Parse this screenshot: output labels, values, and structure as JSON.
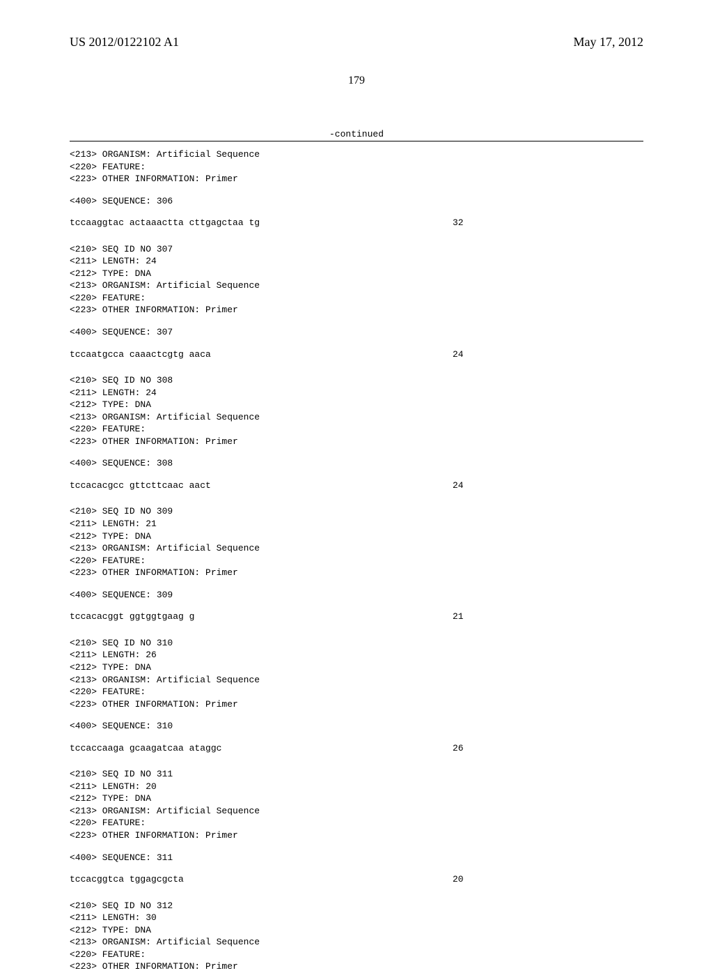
{
  "header": {
    "pub_number": "US 2012/0122102 A1",
    "pub_date": "May 17, 2012"
  },
  "page_number": "179",
  "continued_label": "-continued",
  "entries": [
    {
      "pre_lines": [
        "<213> ORGANISM: Artificial Sequence",
        "<220> FEATURE:",
        "<223> OTHER INFORMATION: Primer"
      ],
      "seq400": "<400> SEQUENCE: 306",
      "sequence": "tccaaggtac actaaactta cttgagctaa tg",
      "length": "32",
      "show_header_block": false
    },
    {
      "header_lines": [
        "<210> SEQ ID NO 307",
        "<211> LENGTH: 24",
        "<212> TYPE: DNA",
        "<213> ORGANISM: Artificial Sequence",
        "<220> FEATURE:",
        "<223> OTHER INFORMATION: Primer"
      ],
      "seq400": "<400> SEQUENCE: 307",
      "sequence": "tccaatgcca caaactcgtg aaca",
      "length": "24",
      "show_header_block": true
    },
    {
      "header_lines": [
        "<210> SEQ ID NO 308",
        "<211> LENGTH: 24",
        "<212> TYPE: DNA",
        "<213> ORGANISM: Artificial Sequence",
        "<220> FEATURE:",
        "<223> OTHER INFORMATION: Primer"
      ],
      "seq400": "<400> SEQUENCE: 308",
      "sequence": "tccacacgcc gttcttcaac aact",
      "length": "24",
      "show_header_block": true
    },
    {
      "header_lines": [
        "<210> SEQ ID NO 309",
        "<211> LENGTH: 21",
        "<212> TYPE: DNA",
        "<213> ORGANISM: Artificial Sequence",
        "<220> FEATURE:",
        "<223> OTHER INFORMATION: Primer"
      ],
      "seq400": "<400> SEQUENCE: 309",
      "sequence": "tccacacggt ggtggtgaag g",
      "length": "21",
      "show_header_block": true
    },
    {
      "header_lines": [
        "<210> SEQ ID NO 310",
        "<211> LENGTH: 26",
        "<212> TYPE: DNA",
        "<213> ORGANISM: Artificial Sequence",
        "<220> FEATURE:",
        "<223> OTHER INFORMATION: Primer"
      ],
      "seq400": "<400> SEQUENCE: 310",
      "sequence": "tccaccaaga gcaagatcaa ataggc",
      "length": "26",
      "show_header_block": true
    },
    {
      "header_lines": [
        "<210> SEQ ID NO 311",
        "<211> LENGTH: 20",
        "<212> TYPE: DNA",
        "<213> ORGANISM: Artificial Sequence",
        "<220> FEATURE:",
        "<223> OTHER INFORMATION: Primer"
      ],
      "seq400": "<400> SEQUENCE: 311",
      "sequence": "tccacggtca tggagcgcta",
      "length": "20",
      "show_header_block": true
    },
    {
      "header_lines": [
        "<210> SEQ ID NO 312",
        "<211> LENGTH: 30",
        "<212> TYPE: DNA",
        "<213> ORGANISM: Artificial Sequence",
        "<220> FEATURE:",
        "<223> OTHER INFORMATION: Primer"
      ],
      "seq400": "",
      "sequence": "",
      "length": "",
      "show_header_block": true,
      "trailing_only": true
    }
  ]
}
